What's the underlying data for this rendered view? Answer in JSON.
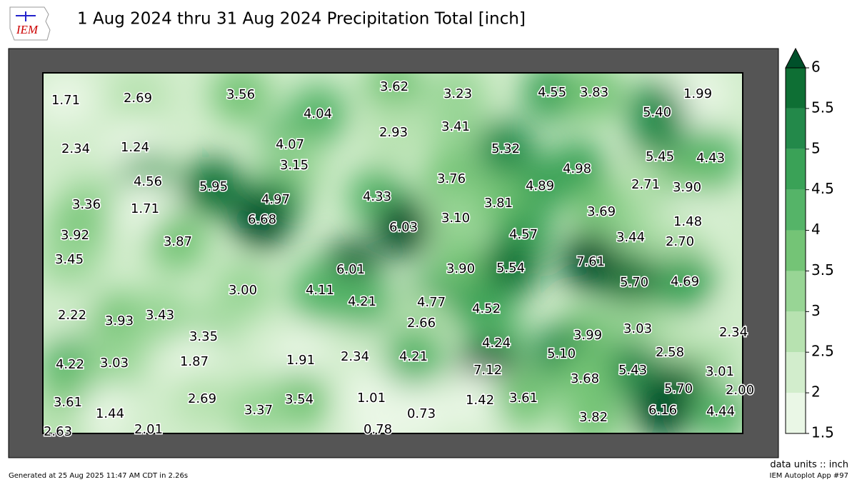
{
  "title": "1 Aug 2024 thru 31 Aug 2024 Precipitation Total [inch]",
  "logo": "IEM",
  "map": {
    "values": [
      1.71,
      2.69,
      3.56,
      3.62,
      3.23,
      4.55,
      3.83,
      1.99,
      4.04,
      5.4,
      2.34,
      1.24,
      4.07,
      2.93,
      3.41,
      5.32,
      5.45,
      4.43,
      3.15,
      4.98,
      4.56,
      5.95,
      4.97,
      4.33,
      3.76,
      4.89,
      2.71,
      3.9,
      3.36,
      1.71,
      3.81,
      3.69,
      6.68,
      6.03,
      3.1,
      1.48,
      3.92,
      3.87,
      4.57,
      3.44,
      2.7,
      3.45,
      6.01,
      3.9,
      5.54,
      7.61,
      5.7,
      4.69,
      3.0,
      4.11,
      4.21,
      4.77,
      4.52,
      2.22,
      3.93,
      3.43,
      2.66,
      3.35,
      3.99,
      3.03,
      2.34,
      4.24,
      5.1,
      2.58,
      1.87,
      1.91,
      2.34,
      4.21,
      4.22,
      3.03,
      7.12,
      5.43,
      3.01,
      3.68,
      5.7,
      2.0,
      3.61,
      2.69,
      1.01,
      1.42,
      3.61,
      3.54,
      3.37,
      1.44,
      0.73,
      6.16,
      4.44,
      3.82,
      2.63,
      2.01,
      0.78
    ],
    "value_labels": [
      "1.71",
      "2.69",
      "3.56",
      "3.62",
      "3.23",
      "4.55",
      "3.83",
      "1.99",
      "4.04",
      "5.40",
      "2.34",
      "1.24",
      "4.07",
      "2.93",
      "3.41",
      "5.32",
      "5.45",
      "4.43",
      "3.15",
      "4.98",
      "4.56",
      "5.95",
      "4.97",
      "4.33",
      "3.76",
      "4.89",
      "2.71",
      "3.90",
      "3.36",
      "1.71",
      "3.81",
      "3.69",
      "6.68",
      "6.03",
      "3.10",
      "1.48",
      "3.92",
      "3.87",
      "4.57",
      "3.44",
      "2.70",
      "3.45",
      "6.01",
      "3.90",
      "5.54",
      "7.61",
      "5.70",
      "4.69",
      "3.00",
      "4.11",
      "4.21",
      "4.77",
      "4.52",
      "2.22",
      "3.93",
      "3.43",
      "2.66",
      "3.35",
      "3.99",
      "3.03",
      "2.34",
      "4.24",
      "5.10",
      "2.58",
      "1.87",
      "1.91",
      "2.34",
      "4.21",
      "4.22",
      "3.03",
      "7.12",
      "5.43",
      "3.01",
      "3.68",
      "5.70",
      "2.00",
      "3.61",
      "2.69",
      "1.01",
      "1.42",
      "3.61",
      "3.54",
      "3.37",
      "1.44",
      "0.73",
      "6.16",
      "4.44",
      "3.82",
      "2.63",
      "2.01",
      "0.78"
    ]
  },
  "colorbar": {
    "ticks": [
      1.5,
      2,
      2.5,
      3,
      3.5,
      4,
      4.5,
      5,
      5.5,
      6
    ],
    "colors": [
      "#eaf7e6",
      "#d2edcc",
      "#b7e2b0",
      "#98d595",
      "#74c476",
      "#55b468",
      "#3aa257",
      "#23894a",
      "#0e6f34",
      "#00502a"
    ]
  },
  "footer": {
    "units": "data units :: inch",
    "generated": "Generated at 25 Aug 2025 11:47 AM CDT in 2.26s",
    "app": "IEM Autoplot App #97"
  }
}
